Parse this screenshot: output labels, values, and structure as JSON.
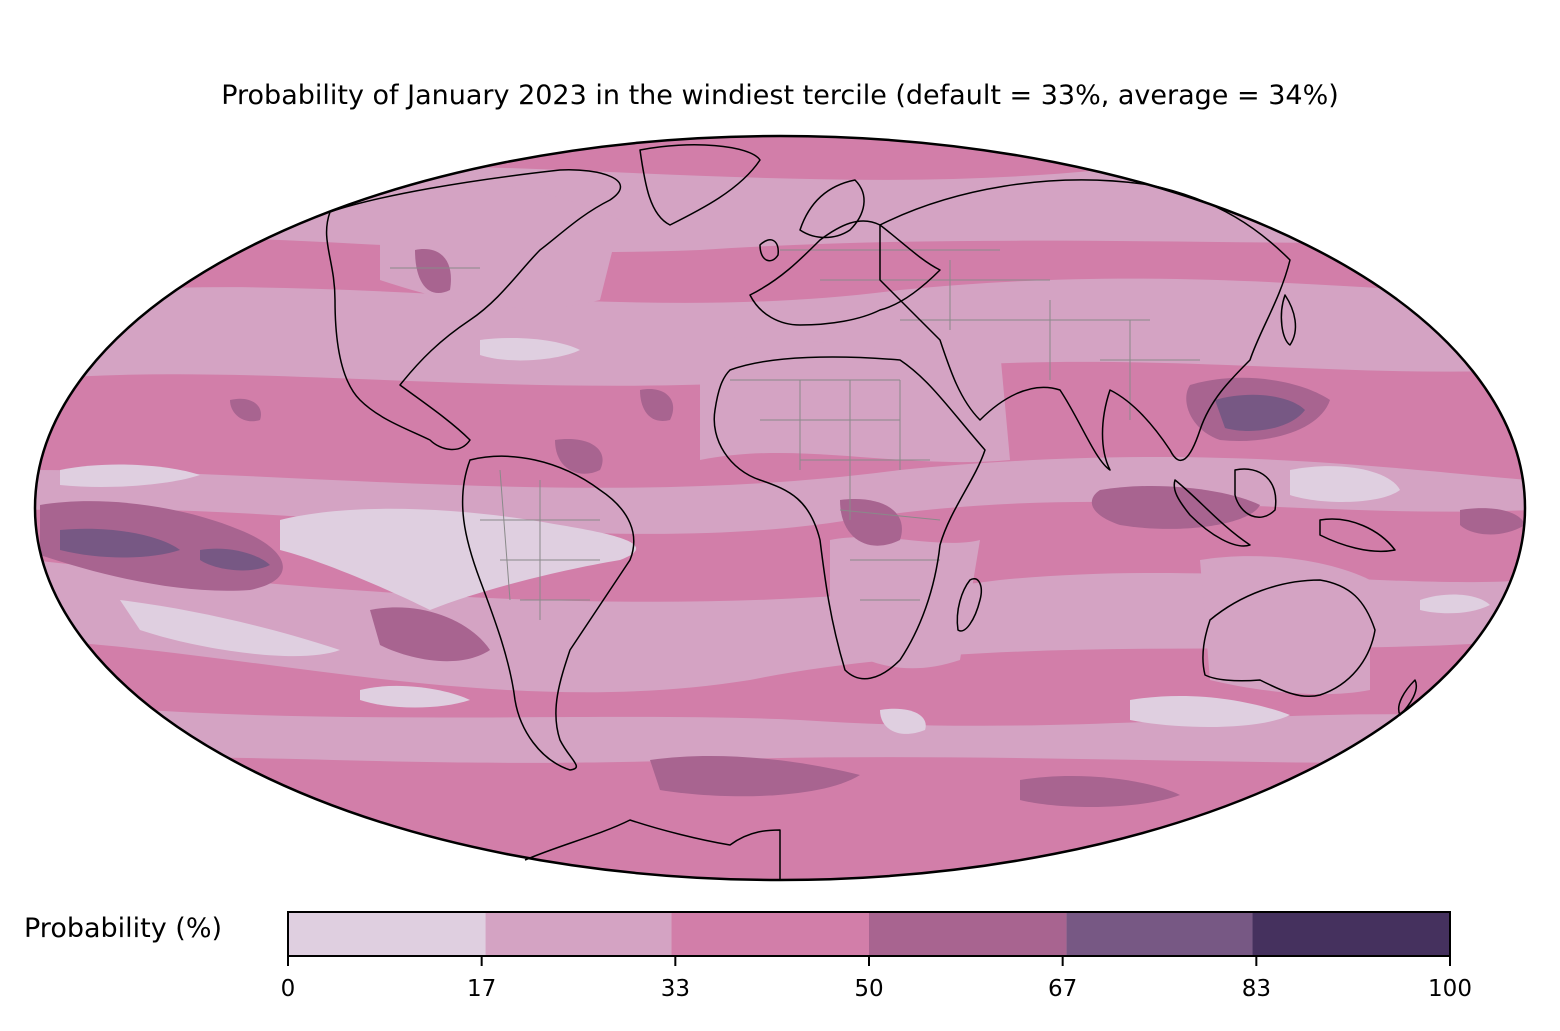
{
  "title": "Probability of January 2023 in the windiest tercile (default = 33%, average = 34%)",
  "projection": "mollweide",
  "colorbar": {
    "label": "Probability (%)",
    "ticks": [
      "0",
      "17",
      "33",
      "50",
      "67",
      "83",
      "100"
    ],
    "bins": [
      {
        "from": 0,
        "to": 17,
        "color": "#dfcfe0"
      },
      {
        "from": 17,
        "to": 33,
        "color": "#d4a3c3"
      },
      {
        "from": 33,
        "to": 50,
        "color": "#d27ea9"
      },
      {
        "from": 50,
        "to": 67,
        "color": "#a86490"
      },
      {
        "from": 67,
        "to": 83,
        "color": "#775884"
      },
      {
        "from": 83,
        "to": 100,
        "color": "#45315e"
      }
    ]
  },
  "colors": {
    "coastline": "#000000",
    "borders": "#8a8a8a"
  }
}
